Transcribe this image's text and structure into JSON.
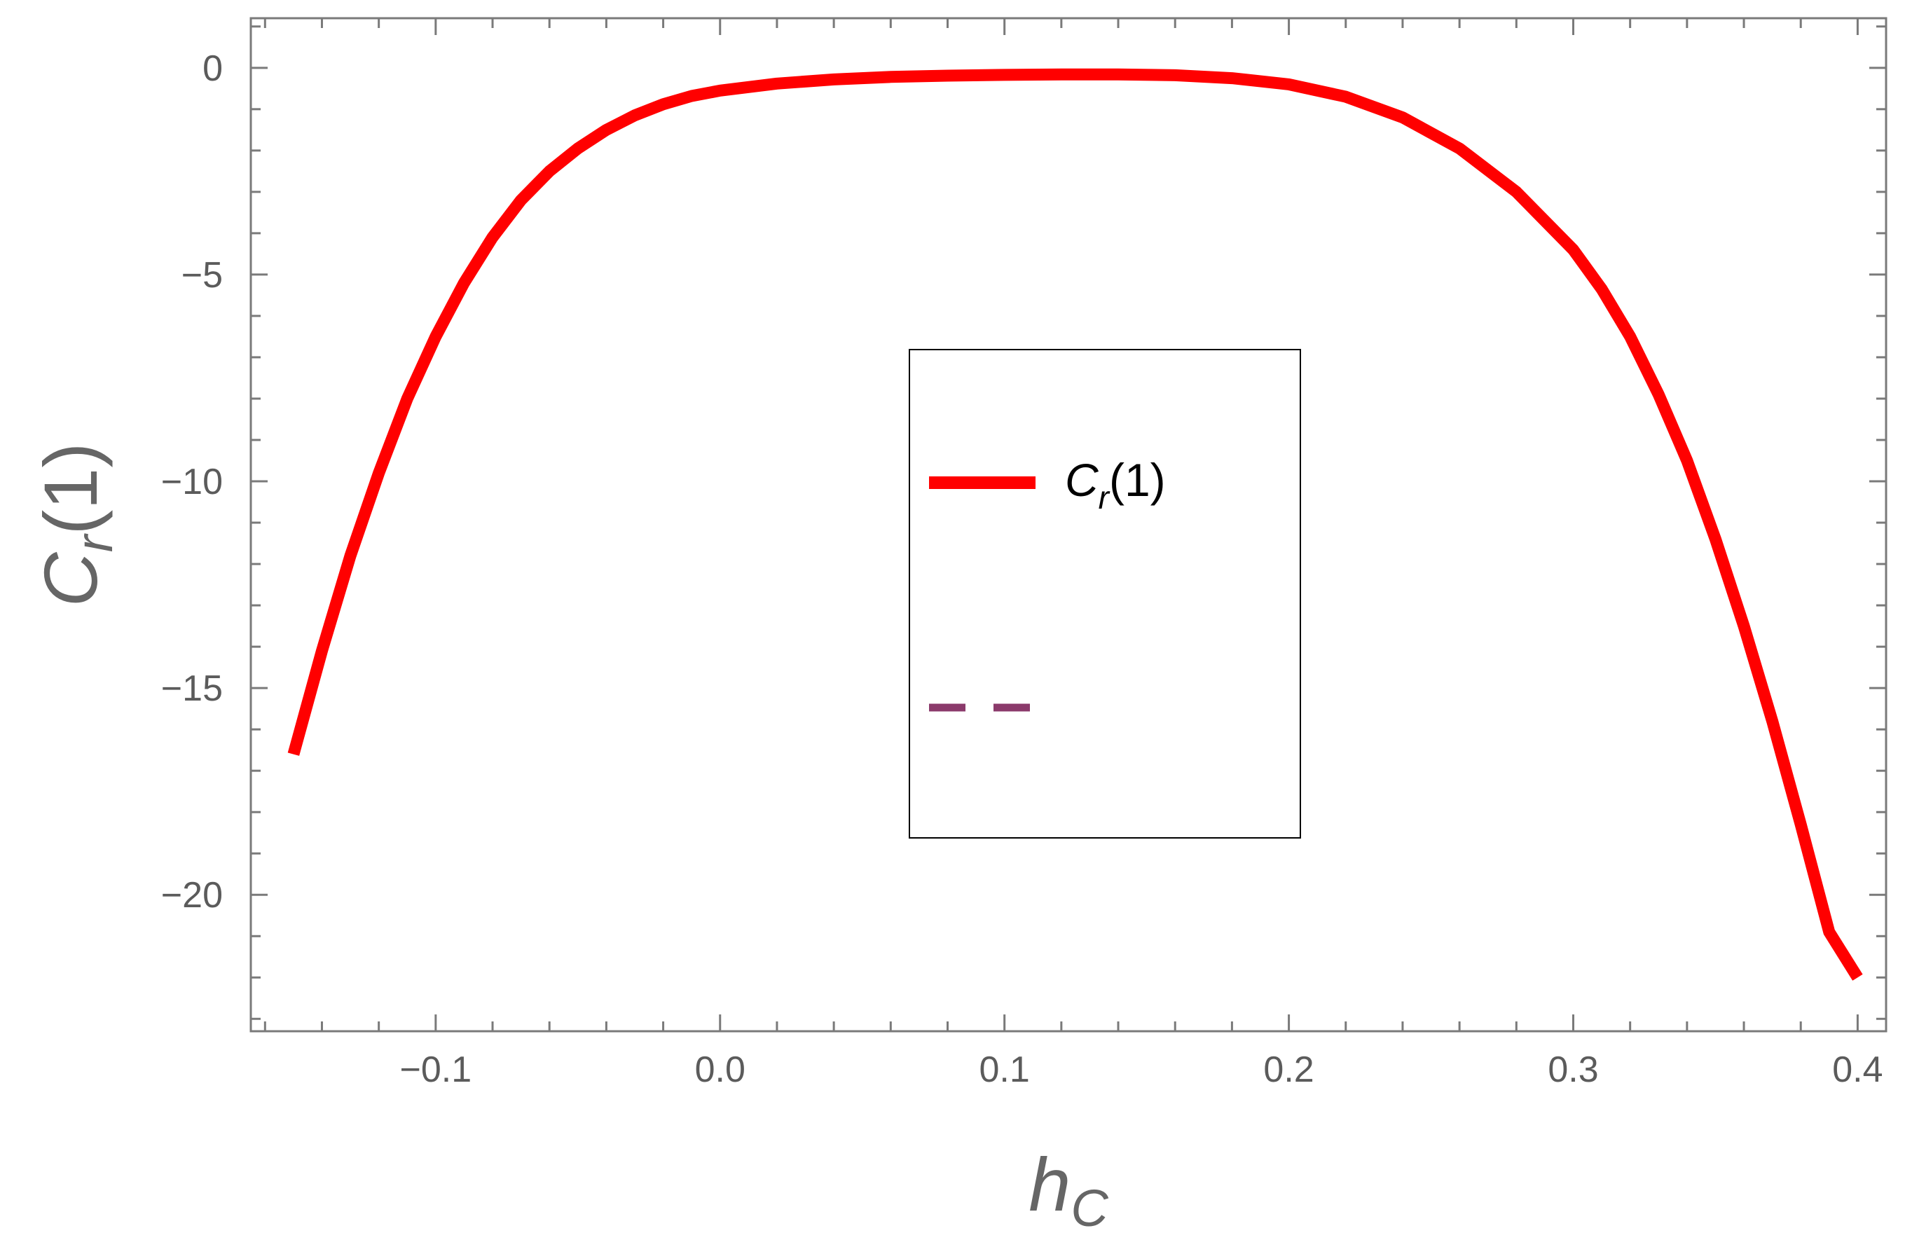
{
  "chart_data": {
    "type": "line",
    "xlabel": {
      "base": "h",
      "sub": "C"
    },
    "ylabel": {
      "base": "C",
      "sub": "r",
      "suffix": "(1)"
    },
    "xlim": [
      -0.165,
      0.41
    ],
    "ylim": [
      -23.3,
      1.2
    ],
    "x_ticks": [
      -0.1,
      0.0,
      0.1,
      0.2,
      0.3,
      0.4
    ],
    "x_tick_labels": [
      "−0.1",
      "0.0",
      "0.1",
      "0.2",
      "0.3",
      "0.4"
    ],
    "y_ticks": [
      0,
      -5,
      -10,
      -15,
      -20
    ],
    "y_tick_labels": [
      "0",
      "−5",
      "−10",
      "−15",
      "−20"
    ],
    "grid": false,
    "legend_position": "center",
    "series": [
      {
        "name": "C_r(1)",
        "color": "#ff0000",
        "style": "solid",
        "x": [
          -0.15,
          -0.14,
          -0.13,
          -0.12,
          -0.11,
          -0.1,
          -0.09,
          -0.08,
          -0.07,
          -0.06,
          -0.05,
          -0.04,
          -0.03,
          -0.02,
          -0.01,
          0.0,
          0.02,
          0.04,
          0.06,
          0.08,
          0.1,
          0.12,
          0.14,
          0.16,
          0.18,
          0.2,
          0.22,
          0.24,
          0.26,
          0.28,
          0.3,
          0.31,
          0.32,
          0.33,
          0.34,
          0.35,
          0.36,
          0.37,
          0.38,
          0.39,
          0.4
        ],
        "y": [
          -16.6,
          -14.1,
          -11.8,
          -9.8,
          -8.0,
          -6.5,
          -5.2,
          -4.1,
          -3.2,
          -2.5,
          -1.95,
          -1.5,
          -1.15,
          -0.88,
          -0.68,
          -0.55,
          -0.38,
          -0.28,
          -0.22,
          -0.19,
          -0.17,
          -0.16,
          -0.16,
          -0.18,
          -0.25,
          -0.4,
          -0.7,
          -1.2,
          -1.95,
          -3.0,
          -4.4,
          -5.35,
          -6.5,
          -7.9,
          -9.5,
          -11.4,
          -13.5,
          -15.8,
          -18.3,
          -20.9,
          -22.0
        ]
      },
      {
        "name": "",
        "color": "#8b3a6b",
        "style": "dashed",
        "x": [],
        "y": []
      }
    ]
  }
}
